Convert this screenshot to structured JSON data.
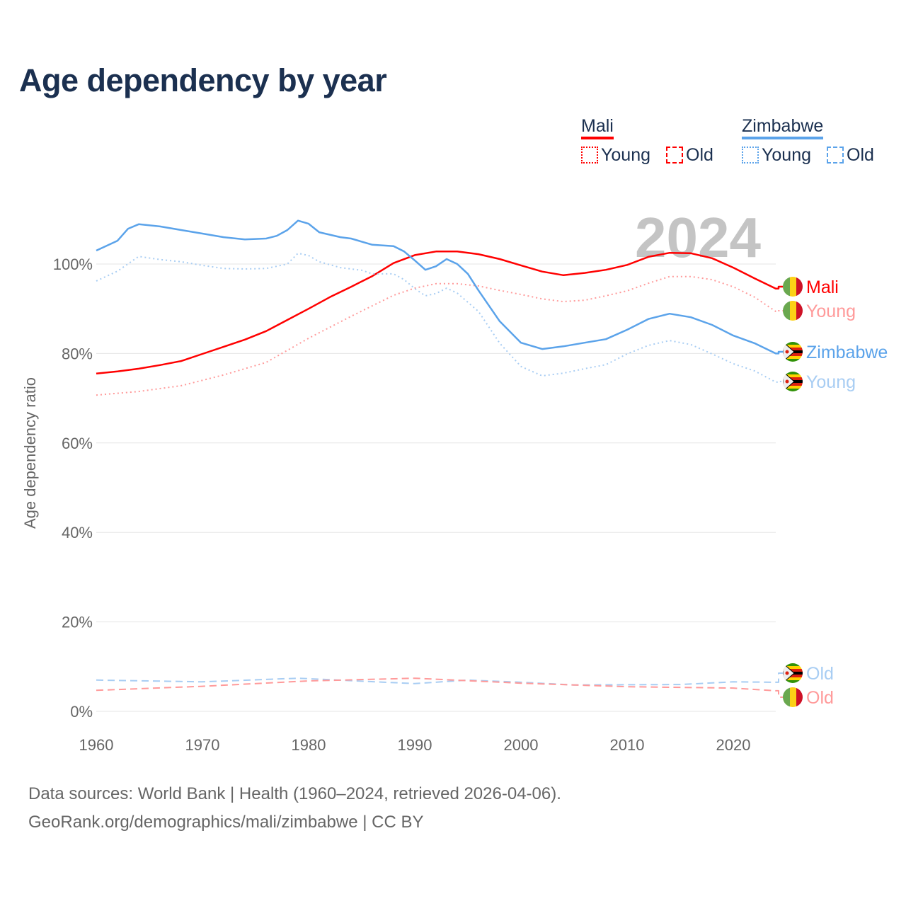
{
  "title": "Age dependency by year",
  "footer": {
    "line1": "Data sources: World Bank | Health (1960–2024, retrieved 2026-04-06).",
    "line2": "GeoRank.org/demographics/mali/zimbabwe | CC BY"
  },
  "legend": {
    "countries": [
      {
        "name": "Mali",
        "color": "#ff0000",
        "young": "Young",
        "old": "Old"
      },
      {
        "name": "Zimbabwe",
        "color": "#5ba3ea",
        "young": "Young",
        "old": "Old"
      }
    ]
  },
  "chart_data": {
    "type": "line",
    "title": "Age dependency by year",
    "year_watermark": "2024",
    "ylabel": "Age dependency ratio",
    "xlabel": "",
    "xlim": [
      1960,
      2024
    ],
    "ylim": [
      0,
      110
    ],
    "xticks": [
      "1960",
      "1970",
      "1980",
      "1990",
      "2000",
      "2010",
      "2020"
    ],
    "yticks": [
      "0%",
      "20%",
      "40%",
      "60%",
      "80%",
      "100%"
    ],
    "series": [
      {
        "name": "Mali",
        "label": "Mali",
        "style": "solid",
        "color": "#ff0000",
        "flag": "mali",
        "x": [
          1960,
          1962,
          1964,
          1966,
          1968,
          1970,
          1972,
          1974,
          1976,
          1978,
          1980,
          1982,
          1984,
          1986,
          1988,
          1990,
          1992,
          1994,
          1996,
          1998,
          2000,
          2002,
          2004,
          2006,
          2008,
          2010,
          2012,
          2014,
          2016,
          2018,
          2020,
          2022,
          2024
        ],
        "y": [
          75.5,
          76,
          76.6,
          77.4,
          78.3,
          79.9,
          81.5,
          83.1,
          85,
          87.5,
          90,
          92.6,
          94.9,
          97.3,
          100.2,
          102,
          102.8,
          102.8,
          102.2,
          101.1,
          99.7,
          98.3,
          97.5,
          98,
          98.7,
          99.8,
          101.6,
          102.5,
          102.4,
          101.3,
          99.2,
          96.8,
          94.5
        ]
      },
      {
        "name": "Mali Young",
        "label": "Young",
        "style": "dotted",
        "color": "#ff9a9a",
        "flag": "mali",
        "x": [
          1960,
          1964,
          1968,
          1972,
          1976,
          1980,
          1984,
          1988,
          1990,
          1992,
          1994,
          1996,
          1998,
          2000,
          2002,
          2004,
          2006,
          2008,
          2010,
          2012,
          2014,
          2016,
          2018,
          2020,
          2022,
          2024
        ],
        "y": [
          70.7,
          71.5,
          72.8,
          75.2,
          78,
          83.4,
          88.3,
          93,
          94.6,
          95.6,
          95.6,
          95.1,
          94.1,
          93.2,
          92.2,
          91.6,
          91.9,
          92.9,
          94,
          95.7,
          97.2,
          97.2,
          96.5,
          94.9,
          92.6,
          89.4
        ]
      },
      {
        "name": "Zimbabwe",
        "label": "Zimbabwe",
        "style": "solid",
        "color": "#5ba3ea",
        "flag": "zimbabwe",
        "x": [
          1960,
          1962,
          1963,
          1964,
          1966,
          1968,
          1970,
          1972,
          1974,
          1976,
          1977,
          1978,
          1979,
          1980,
          1981,
          1983,
          1984,
          1986,
          1988,
          1989,
          1990,
          1991,
          1992,
          1993,
          1994,
          1995,
          1996,
          1998,
          2000,
          2002,
          2004,
          2006,
          2008,
          2010,
          2012,
          2014,
          2016,
          2018,
          2020,
          2022,
          2024
        ],
        "y": [
          103,
          105.2,
          107.9,
          108.9,
          108.4,
          107.6,
          106.8,
          106,
          105.5,
          105.7,
          106.3,
          107.6,
          109.7,
          109,
          107.1,
          106,
          105.7,
          104.3,
          104,
          102.8,
          100.8,
          98.7,
          99.5,
          101.1,
          100,
          97.8,
          94.1,
          87.2,
          82.4,
          81,
          81.6,
          82.4,
          83.2,
          85.3,
          87.7,
          88.9,
          88.1,
          86.4,
          84,
          82.3,
          80
        ]
      },
      {
        "name": "Zimbabwe Young",
        "label": "Young",
        "style": "dotted",
        "color": "#a8cdf3",
        "flag": "zimbabwe",
        "x": [
          1960,
          1962,
          1964,
          1966,
          1968,
          1970,
          1972,
          1974,
          1976,
          1978,
          1979,
          1980,
          1981,
          1983,
          1985,
          1986,
          1988,
          1989,
          1990,
          1991,
          1992,
          1993,
          1994,
          1996,
          1998,
          2000,
          2002,
          2004,
          2006,
          2008,
          2010,
          2012,
          2014,
          2016,
          2018,
          2020,
          2022,
          2024
        ],
        "y": [
          96.2,
          98.4,
          101.7,
          101,
          100.5,
          99.7,
          99,
          98.9,
          99,
          100,
          102.4,
          101.9,
          100.5,
          99.2,
          98.6,
          97.8,
          97.8,
          96.5,
          94.5,
          92.9,
          93.4,
          94.6,
          93.5,
          89.4,
          82.3,
          77.1,
          75,
          75.6,
          76.6,
          77.5,
          79.9,
          81.8,
          82.9,
          82,
          79.9,
          77.7,
          76.1,
          73.6
        ]
      },
      {
        "name": "Zimbabwe Old",
        "label": "Old",
        "style": "dashed",
        "color": "#a8cdf3",
        "flag": "zimbabwe",
        "x": [
          1960,
          1970,
          1979,
          1990,
          1995,
          2000,
          2005,
          2015,
          2020,
          2024
        ],
        "y": [
          7,
          6.6,
          7.4,
          6.2,
          7,
          6.5,
          5.9,
          6,
          6.6,
          6.5
        ]
      },
      {
        "name": "Mali Old",
        "label": "Old",
        "style": "dashed",
        "color": "#ff9a9a",
        "flag": "mali",
        "x": [
          1960,
          1970,
          1980,
          1990,
          2000,
          2010,
          2020,
          2024
        ],
        "y": [
          4.7,
          5.6,
          6.8,
          7.4,
          6.3,
          5.5,
          5.2,
          4.6
        ]
      }
    ]
  }
}
